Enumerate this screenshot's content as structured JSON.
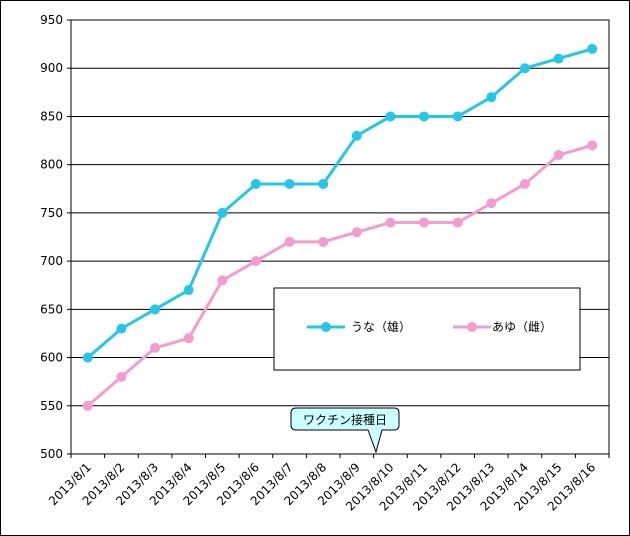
{
  "chart_data": {
    "type": "line",
    "categories": [
      "2013/8/1",
      "2013/8/2",
      "2013/8/3",
      "2013/8/4",
      "2013/8/5",
      "2013/8/6",
      "2013/8/7",
      "2013/8/8",
      "2013/8/9",
      "2013/8/10",
      "2013/8/11",
      "2013/8/12",
      "2013/8/13",
      "2013/8/14",
      "2013/8/15",
      "2013/8/16"
    ],
    "series": [
      {
        "name": "うな（雄）",
        "color": "#26C6E8",
        "values": [
          600,
          630,
          650,
          670,
          750,
          780,
          780,
          780,
          830,
          850,
          850,
          850,
          870,
          900,
          910,
          920
        ]
      },
      {
        "name": "あゆ（雌）",
        "color": "#F49BD0",
        "values": [
          550,
          580,
          610,
          620,
          680,
          700,
          720,
          720,
          730,
          740,
          740,
          740,
          760,
          780,
          810,
          820
        ]
      }
    ],
    "ylim": [
      500,
      950
    ],
    "yticks": [
      500,
      550,
      600,
      650,
      700,
      750,
      800,
      850,
      900,
      950
    ],
    "grid": true,
    "legend_position": "center-right",
    "annotation": {
      "text": "ワクチン接種日",
      "category": "2013/8/10"
    }
  }
}
